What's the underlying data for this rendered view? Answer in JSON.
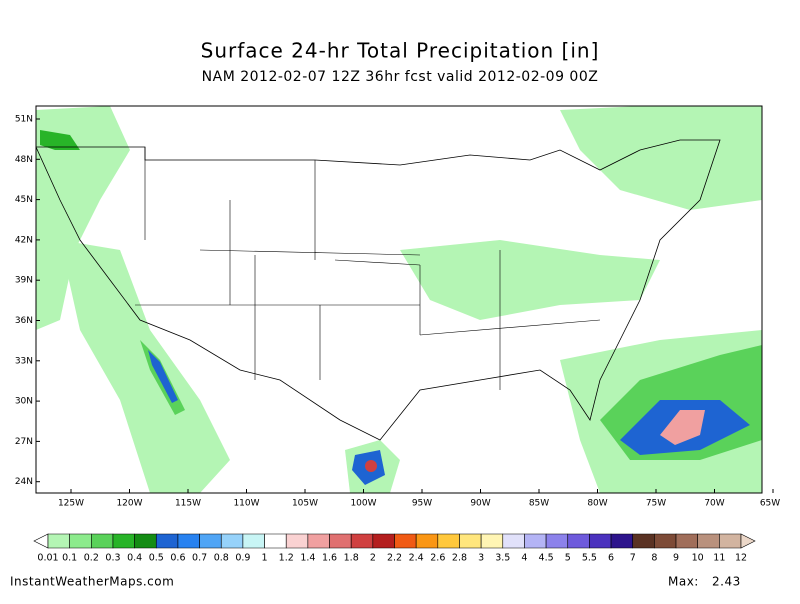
{
  "header": {
    "title": "Surface 24-hr Total Precipitation [in]",
    "subtitle": "NAM 2012-02-07 12Z 36hr fcst valid 2012-02-09 00Z"
  },
  "map": {
    "lat_labels": [
      "51N",
      "48N",
      "45N",
      "42N",
      "39N",
      "36N",
      "33N",
      "30N",
      "27N",
      "24N"
    ],
    "lon_labels": [
      "125W",
      "120W",
      "115W",
      "110W",
      "105W",
      "100W",
      "95W",
      "90W",
      "85W",
      "80W",
      "75W",
      "70W",
      "65W"
    ]
  },
  "legend": {
    "labels": [
      "0.01",
      "0.1",
      "0.2",
      "0.3",
      "0.4",
      "0.5",
      "0.6",
      "0.7",
      "0.8",
      "0.9",
      "1",
      "1.2",
      "1.4",
      "1.6",
      "1.8",
      "2",
      "2.2",
      "2.4",
      "2.6",
      "2.8",
      "3",
      "3.5",
      "4",
      "4.5",
      "5",
      "5.5",
      "6",
      "7",
      "8",
      "9",
      "10",
      "11",
      "12"
    ],
    "colors": [
      "#ffffff",
      "#b4f5b4",
      "#8ceb8c",
      "#5ad25a",
      "#28b428",
      "#148c14",
      "#1e64d2",
      "#2882f0",
      "#50a5f5",
      "#96d2fa",
      "#c8f5f5",
      "#ffffff",
      "#fad2d2",
      "#f0a0a0",
      "#e07070",
      "#d04040",
      "#b41e1e",
      "#f05a14",
      "#fa9614",
      "#ffc83c",
      "#ffe67d",
      "#fff5b4",
      "#e1e1fa",
      "#b4b4f5",
      "#8c82eb",
      "#6e5adc",
      "#4b32be",
      "#2d148c",
      "#5a3223",
      "#7d4b37",
      "#a06e5a",
      "#b9917d",
      "#d2b4a0",
      "#ebd7c8"
    ]
  },
  "footer": {
    "source": "InstantWeatherMaps.com",
    "max_label": "Max:",
    "max_value": 2.43
  }
}
